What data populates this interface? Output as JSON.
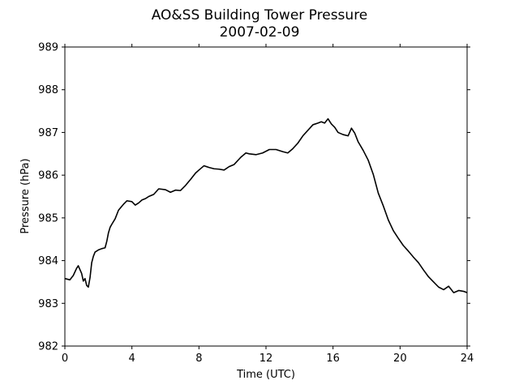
{
  "chart_data": {
    "type": "line",
    "title": "AO&SS Building Tower Pressure",
    "subtitle": "2007-02-09",
    "xlabel": "Time (UTC)",
    "ylabel": "Pressure (hPa)",
    "xlim": [
      0,
      24
    ],
    "ylim": [
      982,
      989
    ],
    "xticks": [
      0,
      4,
      8,
      12,
      16,
      20,
      24
    ],
    "yticks": [
      982,
      983,
      984,
      985,
      986,
      987,
      988,
      989
    ],
    "grid": false,
    "line_color": "#000000",
    "series": [
      {
        "x": [
          0.0,
          0.3,
          0.5,
          0.7,
          0.8,
          1.0,
          1.1,
          1.2,
          1.3,
          1.4,
          1.5,
          1.6,
          1.7,
          1.8,
          2.0,
          2.2,
          2.4,
          2.5,
          2.6,
          2.7,
          2.8,
          3.0,
          3.2,
          3.5,
          3.7,
          4.0,
          4.2,
          4.4,
          4.6,
          4.8,
          5.0,
          5.3,
          5.6,
          6.0,
          6.3,
          6.6,
          6.9,
          7.2,
          7.5,
          7.8,
          8.0,
          8.3,
          8.6,
          8.9,
          9.2,
          9.5,
          9.8,
          10.1,
          10.5,
          10.8,
          11.0,
          11.4,
          11.8,
          12.2,
          12.6,
          13.0,
          13.3,
          13.6,
          13.9,
          14.2,
          14.5,
          14.8,
          15.1,
          15.3,
          15.5,
          15.7,
          15.9,
          16.1,
          16.3,
          16.6,
          16.9,
          17.1,
          17.3,
          17.5,
          17.8,
          18.1,
          18.4,
          18.7,
          19.0,
          19.3,
          19.6,
          19.9,
          20.2,
          20.5,
          20.8,
          21.1,
          21.4,
          21.7,
          22.0,
          22.3,
          22.6,
          22.9,
          23.2,
          23.5,
          23.8,
          24.0
        ],
        "y": [
          983.58,
          983.55,
          983.65,
          983.82,
          983.88,
          983.7,
          983.52,
          983.58,
          983.42,
          983.38,
          983.6,
          983.95,
          984.1,
          984.2,
          984.25,
          984.28,
          984.3,
          984.45,
          984.65,
          984.78,
          984.85,
          984.98,
          985.18,
          985.32,
          985.4,
          985.38,
          985.3,
          985.35,
          985.42,
          985.45,
          985.5,
          985.55,
          985.68,
          985.66,
          985.6,
          985.65,
          985.64,
          985.76,
          985.9,
          986.05,
          986.12,
          986.22,
          986.18,
          986.15,
          986.14,
          986.12,
          986.2,
          986.25,
          986.42,
          986.52,
          986.5,
          986.48,
          986.52,
          986.6,
          986.6,
          986.55,
          986.52,
          986.62,
          986.75,
          986.92,
          987.05,
          987.18,
          987.22,
          987.25,
          987.22,
          987.32,
          987.2,
          987.12,
          987.0,
          986.95,
          986.92,
          987.1,
          986.98,
          986.78,
          986.58,
          986.35,
          986.02,
          985.58,
          985.28,
          984.95,
          984.7,
          984.52,
          984.35,
          984.22,
          984.08,
          983.95,
          983.78,
          983.62,
          983.5,
          983.38,
          983.32,
          983.4,
          983.25,
          983.3,
          983.28,
          983.25
        ]
      }
    ]
  }
}
